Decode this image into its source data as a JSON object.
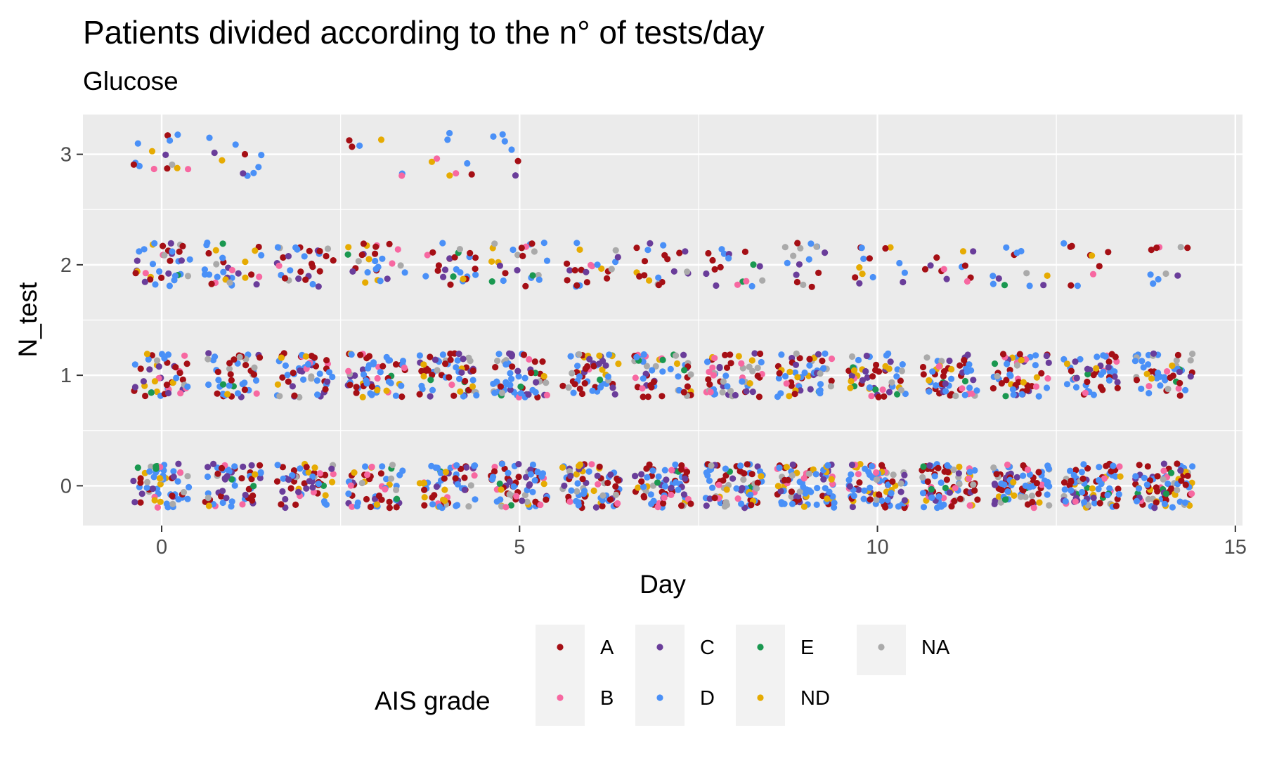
{
  "chart_data": {
    "type": "scatter",
    "title": "Patients divided according to the n° of tests/day",
    "subtitle": "Glucose",
    "xlabel": "Day",
    "ylabel": "N_test",
    "xlim": [
      -1.1,
      15.1
    ],
    "ylim": [
      -0.36,
      3.36
    ],
    "x_ticks": [
      0,
      5,
      10,
      15
    ],
    "y_ticks": [
      0,
      1,
      2,
      3
    ],
    "grid": true,
    "jitter": {
      "x": 0.4,
      "y": 0.2
    },
    "legend": {
      "title": "AIS grade",
      "position": "bottom",
      "entries": [
        {
          "label": "A",
          "color": "#A50F15"
        },
        {
          "label": "B",
          "color": "#F768A1"
        },
        {
          "label": "C",
          "color": "#6A3D9A"
        },
        {
          "label": "D",
          "color": "#4A90F7"
        },
        {
          "label": "E",
          "color": "#1A9850"
        },
        {
          "label": "ND",
          "color": "#E6AB02"
        },
        {
          "label": "NA",
          "color": "#AAAAAA"
        }
      ]
    },
    "series_mix": [
      "A",
      "A",
      "A",
      "B",
      "C",
      "C",
      "D",
      "D",
      "D",
      "D",
      "ND",
      "NA"
    ],
    "rare_mix": [
      "E",
      "E",
      "E",
      "E",
      "ND",
      "NA"
    ],
    "point_counts": {
      "n_test_0": [
        60,
        55,
        55,
        55,
        60,
        70,
        70,
        70,
        75,
        85,
        85,
        80,
        80,
        85,
        85
      ],
      "n_test_1": [
        45,
        45,
        50,
        60,
        60,
        60,
        55,
        55,
        55,
        55,
        55,
        55,
        55,
        50,
        50
      ],
      "n_test_2": [
        38,
        32,
        30,
        28,
        26,
        24,
        22,
        20,
        18,
        16,
        14,
        12,
        12,
        10,
        10
      ],
      "n_test_3": [
        14,
        10,
        0,
        6,
        8,
        6,
        0,
        0,
        0,
        0,
        0,
        0,
        0,
        0,
        0
      ]
    }
  }
}
